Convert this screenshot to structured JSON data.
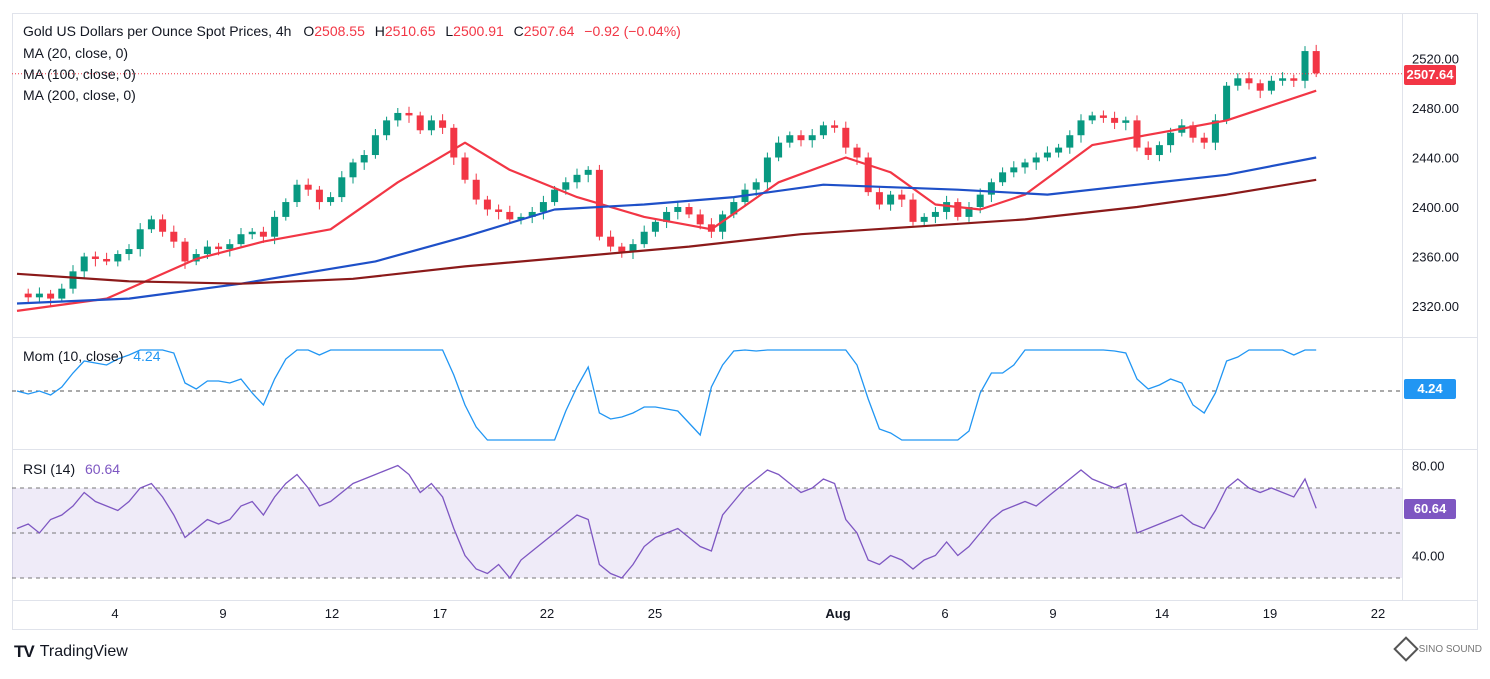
{
  "header": {
    "symbol": "Gold US Dollars per Ounce Spot Prices, 4h",
    "open_label": "O",
    "open": "2508.55",
    "high_label": "H",
    "high": "2510.65",
    "low_label": "L",
    "low": "2500.91",
    "close_label": "C",
    "close": "2507.64",
    "change": "−0.92 (−0.04%)"
  },
  "indicators": {
    "ma20": "MA (20, close, 0)",
    "ma100": "MA (100, close, 0)",
    "ma200": "MA (200, close, 0)",
    "mom_label": "Mom (10, close)",
    "mom_value": "4.24",
    "rsi_label": "RSI (14)",
    "rsi_value": "60.64"
  },
  "price_badge": "2507.64",
  "mom_badge": "4.24",
  "rsi_badge": "60.64",
  "brand": {
    "name": "TradingView",
    "mark": "TV",
    "watermark": "SINO SOUND"
  },
  "colors": {
    "up": "#089981",
    "down": "#f23645",
    "ma20": "#f23645",
    "ma100": "#1e50c8",
    "ma200": "#8b1a1a",
    "mom": "#2196f3",
    "rsi": "#7e57c2"
  },
  "chart_data": [
    {
      "type": "candlestick",
      "title": "Gold US Dollars per Ounce Spot Prices, 4h",
      "x_tick_labels": [
        "4",
        "9",
        "12",
        "17",
        "22",
        "25",
        "Aug",
        "6",
        "9",
        "14",
        "19",
        "22"
      ],
      "y_tick_labels": [
        "2320.00",
        "2360.00",
        "2400.00",
        "2440.00",
        "2480.00",
        "2520.00"
      ],
      "ylim": [
        2310,
        2532
      ],
      "last_price": 2507.64,
      "close_path": [
        [
          0,
          2330
        ],
        [
          1,
          2327
        ],
        [
          2,
          2330
        ],
        [
          3,
          2326
        ],
        [
          4,
          2334
        ],
        [
          5,
          2348
        ],
        [
          6,
          2360
        ],
        [
          7,
          2358
        ],
        [
          8,
          2356
        ],
        [
          9,
          2362
        ],
        [
          10,
          2366
        ],
        [
          11,
          2382
        ],
        [
          12,
          2390
        ],
        [
          13,
          2380
        ],
        [
          14,
          2372
        ],
        [
          15,
          2356
        ],
        [
          16,
          2362
        ],
        [
          17,
          2368
        ],
        [
          18,
          2366
        ],
        [
          19,
          2370
        ],
        [
          20,
          2378
        ],
        [
          21,
          2380
        ],
        [
          22,
          2376
        ],
        [
          23,
          2392
        ],
        [
          24,
          2404
        ],
        [
          25,
          2418
        ],
        [
          26,
          2414
        ],
        [
          27,
          2404
        ],
        [
          28,
          2408
        ],
        [
          29,
          2424
        ],
        [
          30,
          2436
        ],
        [
          31,
          2442
        ],
        [
          32,
          2458
        ],
        [
          33,
          2470
        ],
        [
          34,
          2476
        ],
        [
          35,
          2474
        ],
        [
          36,
          2462
        ],
        [
          37,
          2470
        ],
        [
          38,
          2464
        ],
        [
          39,
          2440
        ],
        [
          40,
          2422
        ],
        [
          41,
          2406
        ],
        [
          42,
          2398
        ],
        [
          43,
          2396
        ],
        [
          44,
          2390
        ],
        [
          45,
          2392
        ],
        [
          46,
          2396
        ],
        [
          47,
          2404
        ],
        [
          48,
          2414
        ],
        [
          49,
          2420
        ],
        [
          50,
          2426
        ],
        [
          51,
          2430
        ],
        [
          52,
          2376
        ],
        [
          53,
          2368
        ],
        [
          54,
          2364
        ],
        [
          55,
          2370
        ],
        [
          56,
          2380
        ],
        [
          57,
          2388
        ],
        [
          58,
          2396
        ],
        [
          59,
          2400
        ],
        [
          60,
          2394
        ],
        [
          61,
          2386
        ],
        [
          62,
          2380
        ],
        [
          63,
          2394
        ],
        [
          64,
          2404
        ],
        [
          65,
          2414
        ],
        [
          66,
          2420
        ],
        [
          67,
          2440
        ],
        [
          68,
          2452
        ],
        [
          69,
          2458
        ],
        [
          70,
          2454
        ],
        [
          71,
          2458
        ],
        [
          72,
          2466
        ],
        [
          73,
          2464
        ],
        [
          74,
          2448
        ],
        [
          75,
          2440
        ],
        [
          76,
          2412
        ],
        [
          77,
          2402
        ],
        [
          78,
          2410
        ],
        [
          79,
          2406
        ],
        [
          80,
          2388
        ],
        [
          81,
          2392
        ],
        [
          82,
          2396
        ],
        [
          83,
          2404
        ],
        [
          84,
          2392
        ],
        [
          85,
          2400
        ],
        [
          86,
          2410
        ],
        [
          87,
          2420
        ],
        [
          88,
          2428
        ],
        [
          89,
          2432
        ],
        [
          90,
          2436
        ],
        [
          91,
          2440
        ],
        [
          92,
          2444
        ],
        [
          93,
          2448
        ],
        [
          94,
          2458
        ],
        [
          95,
          2470
        ],
        [
          96,
          2474
        ],
        [
          97,
          2472
        ],
        [
          98,
          2468
        ],
        [
          99,
          2470
        ],
        [
          100,
          2448
        ],
        [
          101,
          2442
        ],
        [
          102,
          2450
        ],
        [
          103,
          2460
        ],
        [
          104,
          2466
        ],
        [
          105,
          2456
        ],
        [
          106,
          2452
        ],
        [
          107,
          2470
        ],
        [
          108,
          2498
        ],
        [
          109,
          2504
        ],
        [
          110,
          2500
        ],
        [
          111,
          2494
        ],
        [
          112,
          2502
        ],
        [
          113,
          2504
        ],
        [
          114,
          2502
        ],
        [
          115,
          2526
        ],
        [
          116,
          2508
        ]
      ],
      "series": [
        {
          "name": "MA (20, close, 0)",
          "values": [
            [
              0,
              2316
            ],
            [
              8,
              2326
            ],
            [
              16,
              2358
            ],
            [
              22,
              2372
            ],
            [
              28,
              2382
            ],
            [
              34,
              2420
            ],
            [
              40,
              2452
            ],
            [
              44,
              2430
            ],
            [
              50,
              2408
            ],
            [
              56,
              2392
            ],
            [
              62,
              2382
            ],
            [
              68,
              2420
            ],
            [
              74,
              2440
            ],
            [
              78,
              2428
            ],
            [
              82,
              2402
            ],
            [
              86,
              2398
            ],
            [
              90,
              2410
            ],
            [
              96,
              2450
            ],
            [
              102,
              2460
            ],
            [
              108,
              2470
            ],
            [
              116,
              2494
            ]
          ]
        },
        {
          "name": "MA (100, close, 0)",
          "values": [
            [
              0,
              2322
            ],
            [
              10,
              2326
            ],
            [
              20,
              2338
            ],
            [
              32,
              2356
            ],
            [
              40,
              2376
            ],
            [
              48,
              2398
            ],
            [
              56,
              2402
            ],
            [
              64,
              2408
            ],
            [
              72,
              2418
            ],
            [
              78,
              2416
            ],
            [
              84,
              2414
            ],
            [
              92,
              2410
            ],
            [
              100,
              2418
            ],
            [
              108,
              2426
            ],
            [
              116,
              2440
            ]
          ]
        },
        {
          "name": "MA (200, close, 0)",
          "values": [
            [
              0,
              2346
            ],
            [
              10,
              2340
            ],
            [
              20,
              2338
            ],
            [
              30,
              2342
            ],
            [
              40,
              2352
            ],
            [
              50,
              2360
            ],
            [
              60,
              2368
            ],
            [
              70,
              2378
            ],
            [
              80,
              2384
            ],
            [
              90,
              2390
            ],
            [
              100,
              2400
            ],
            [
              108,
              2410
            ],
            [
              116,
              2422
            ]
          ]
        }
      ]
    },
    {
      "type": "line",
      "title": "Mom (10, close)",
      "last_value": 4.24
    },
    {
      "type": "line",
      "title": "RSI (14)",
      "y_tick_labels": [
        "40.00",
        "80.00"
      ],
      "ylim": [
        28,
        82
      ],
      "levels": [
        30,
        50,
        70
      ],
      "last_value": 60.64,
      "values": [
        [
          0,
          52
        ],
        [
          1,
          54
        ],
        [
          2,
          50
        ],
        [
          3,
          56
        ],
        [
          4,
          58
        ],
        [
          5,
          62
        ],
        [
          6,
          68
        ],
        [
          7,
          64
        ],
        [
          8,
          62
        ],
        [
          9,
          60
        ],
        [
          10,
          64
        ],
        [
          11,
          70
        ],
        [
          12,
          72
        ],
        [
          13,
          66
        ],
        [
          14,
          58
        ],
        [
          15,
          48
        ],
        [
          16,
          52
        ],
        [
          17,
          56
        ],
        [
          18,
          54
        ],
        [
          19,
          56
        ],
        [
          20,
          62
        ],
        [
          21,
          64
        ],
        [
          22,
          58
        ],
        [
          23,
          66
        ],
        [
          24,
          72
        ],
        [
          25,
          76
        ],
        [
          26,
          70
        ],
        [
          27,
          62
        ],
        [
          28,
          64
        ],
        [
          29,
          68
        ],
        [
          30,
          72
        ],
        [
          31,
          74
        ],
        [
          32,
          76
        ],
        [
          33,
          78
        ],
        [
          34,
          80
        ],
        [
          35,
          76
        ],
        [
          36,
          68
        ],
        [
          37,
          72
        ],
        [
          38,
          66
        ],
        [
          39,
          52
        ],
        [
          40,
          40
        ],
        [
          41,
          34
        ],
        [
          42,
          32
        ],
        [
          43,
          36
        ],
        [
          44,
          30
        ],
        [
          45,
          38
        ],
        [
          46,
          42
        ],
        [
          47,
          46
        ],
        [
          48,
          50
        ],
        [
          49,
          54
        ],
        [
          50,
          58
        ],
        [
          51,
          56
        ],
        [
          52,
          36
        ],
        [
          53,
          32
        ],
        [
          54,
          30
        ],
        [
          55,
          36
        ],
        [
          56,
          44
        ],
        [
          57,
          48
        ],
        [
          58,
          50
        ],
        [
          59,
          52
        ],
        [
          60,
          48
        ],
        [
          61,
          44
        ],
        [
          62,
          42
        ],
        [
          63,
          58
        ],
        [
          64,
          64
        ],
        [
          65,
          70
        ],
        [
          66,
          74
        ],
        [
          67,
          78
        ],
        [
          68,
          76
        ],
        [
          69,
          72
        ],
        [
          70,
          68
        ],
        [
          71,
          70
        ],
        [
          72,
          74
        ],
        [
          73,
          72
        ],
        [
          74,
          56
        ],
        [
          75,
          50
        ],
        [
          76,
          38
        ],
        [
          77,
          36
        ],
        [
          78,
          40
        ],
        [
          79,
          38
        ],
        [
          80,
          34
        ],
        [
          81,
          38
        ],
        [
          82,
          40
        ],
        [
          83,
          46
        ],
        [
          84,
          40
        ],
        [
          85,
          44
        ],
        [
          86,
          50
        ],
        [
          87,
          56
        ],
        [
          88,
          60
        ],
        [
          89,
          62
        ],
        [
          90,
          64
        ],
        [
          91,
          62
        ],
        [
          92,
          66
        ],
        [
          93,
          70
        ],
        [
          94,
          74
        ],
        [
          95,
          78
        ],
        [
          96,
          74
        ],
        [
          97,
          72
        ],
        [
          98,
          70
        ],
        [
          99,
          72
        ],
        [
          100,
          50
        ],
        [
          101,
          52
        ],
        [
          102,
          54
        ],
        [
          103,
          56
        ],
        [
          104,
          58
        ],
        [
          105,
          54
        ],
        [
          106,
          52
        ],
        [
          107,
          60
        ],
        [
          108,
          70
        ],
        [
          109,
          74
        ],
        [
          110,
          70
        ],
        [
          111,
          68
        ],
        [
          112,
          70
        ],
        [
          113,
          68
        ],
        [
          114,
          66
        ],
        [
          115,
          74
        ],
        [
          116,
          61
        ]
      ]
    }
  ]
}
